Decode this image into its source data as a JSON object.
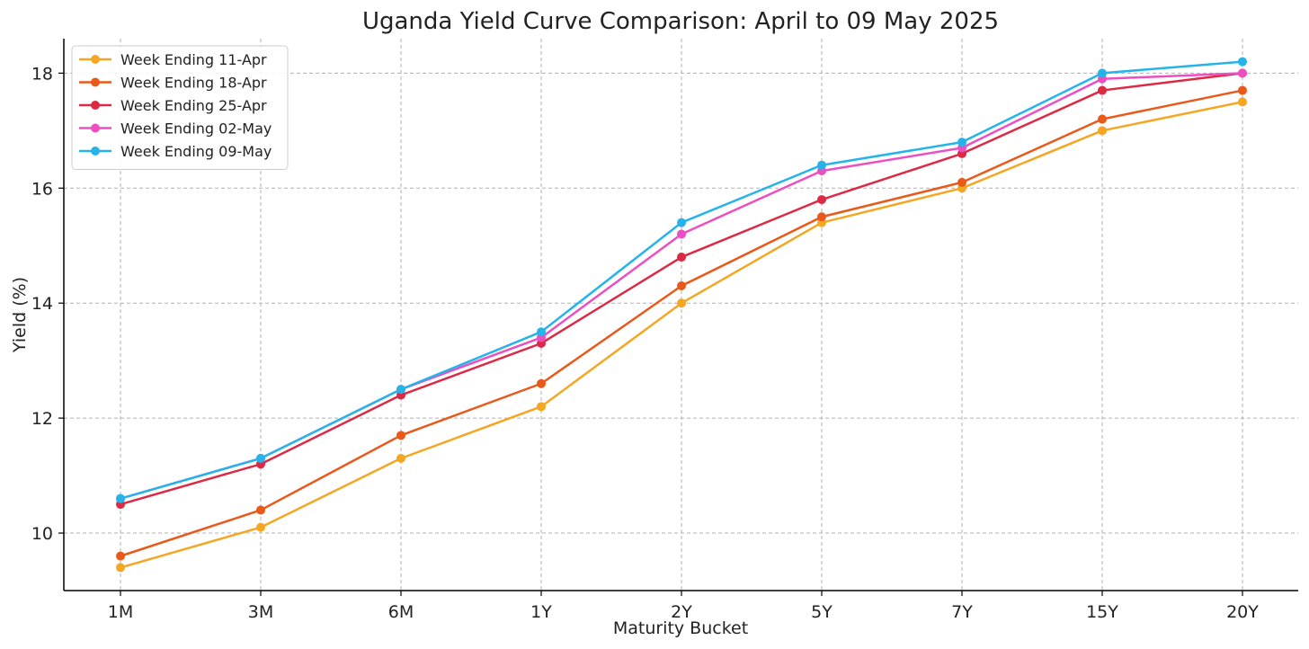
{
  "chart_data": {
    "type": "line",
    "title": "Uganda Yield Curve Comparison: April to 09 May 2025",
    "xlabel": "Maturity Bucket",
    "ylabel": "Yield (%)",
    "categories": [
      "1M",
      "3M",
      "6M",
      "1Y",
      "2Y",
      "5Y",
      "7Y",
      "15Y",
      "20Y"
    ],
    "ylim": [
      9.0,
      18.6
    ],
    "yticks": [
      10,
      12,
      14,
      16,
      18
    ],
    "grid": true,
    "legend_position": "top-left",
    "series": [
      {
        "name": "Week Ending 11-Apr",
        "color": "#f5a623",
        "values": [
          9.4,
          10.1,
          11.3,
          12.2,
          14.0,
          15.4,
          16.0,
          17.0,
          17.5
        ]
      },
      {
        "name": "Week Ending 18-Apr",
        "color": "#e8591a",
        "values": [
          9.6,
          10.4,
          11.7,
          12.6,
          14.3,
          15.5,
          16.1,
          17.2,
          17.7
        ]
      },
      {
        "name": "Week Ending 25-Apr",
        "color": "#dc2a45",
        "values": [
          10.5,
          11.2,
          12.4,
          13.3,
          14.8,
          15.8,
          16.6,
          17.7,
          18.0
        ]
      },
      {
        "name": "Week Ending 02-May",
        "color": "#ec4fc0",
        "values": [
          10.6,
          11.3,
          12.5,
          13.4,
          15.2,
          16.3,
          16.7,
          17.9,
          18.0
        ]
      },
      {
        "name": "Week Ending 09-May",
        "color": "#25b4ea",
        "values": [
          10.6,
          11.3,
          12.5,
          13.5,
          15.4,
          16.4,
          16.8,
          18.0,
          18.2
        ]
      }
    ]
  }
}
